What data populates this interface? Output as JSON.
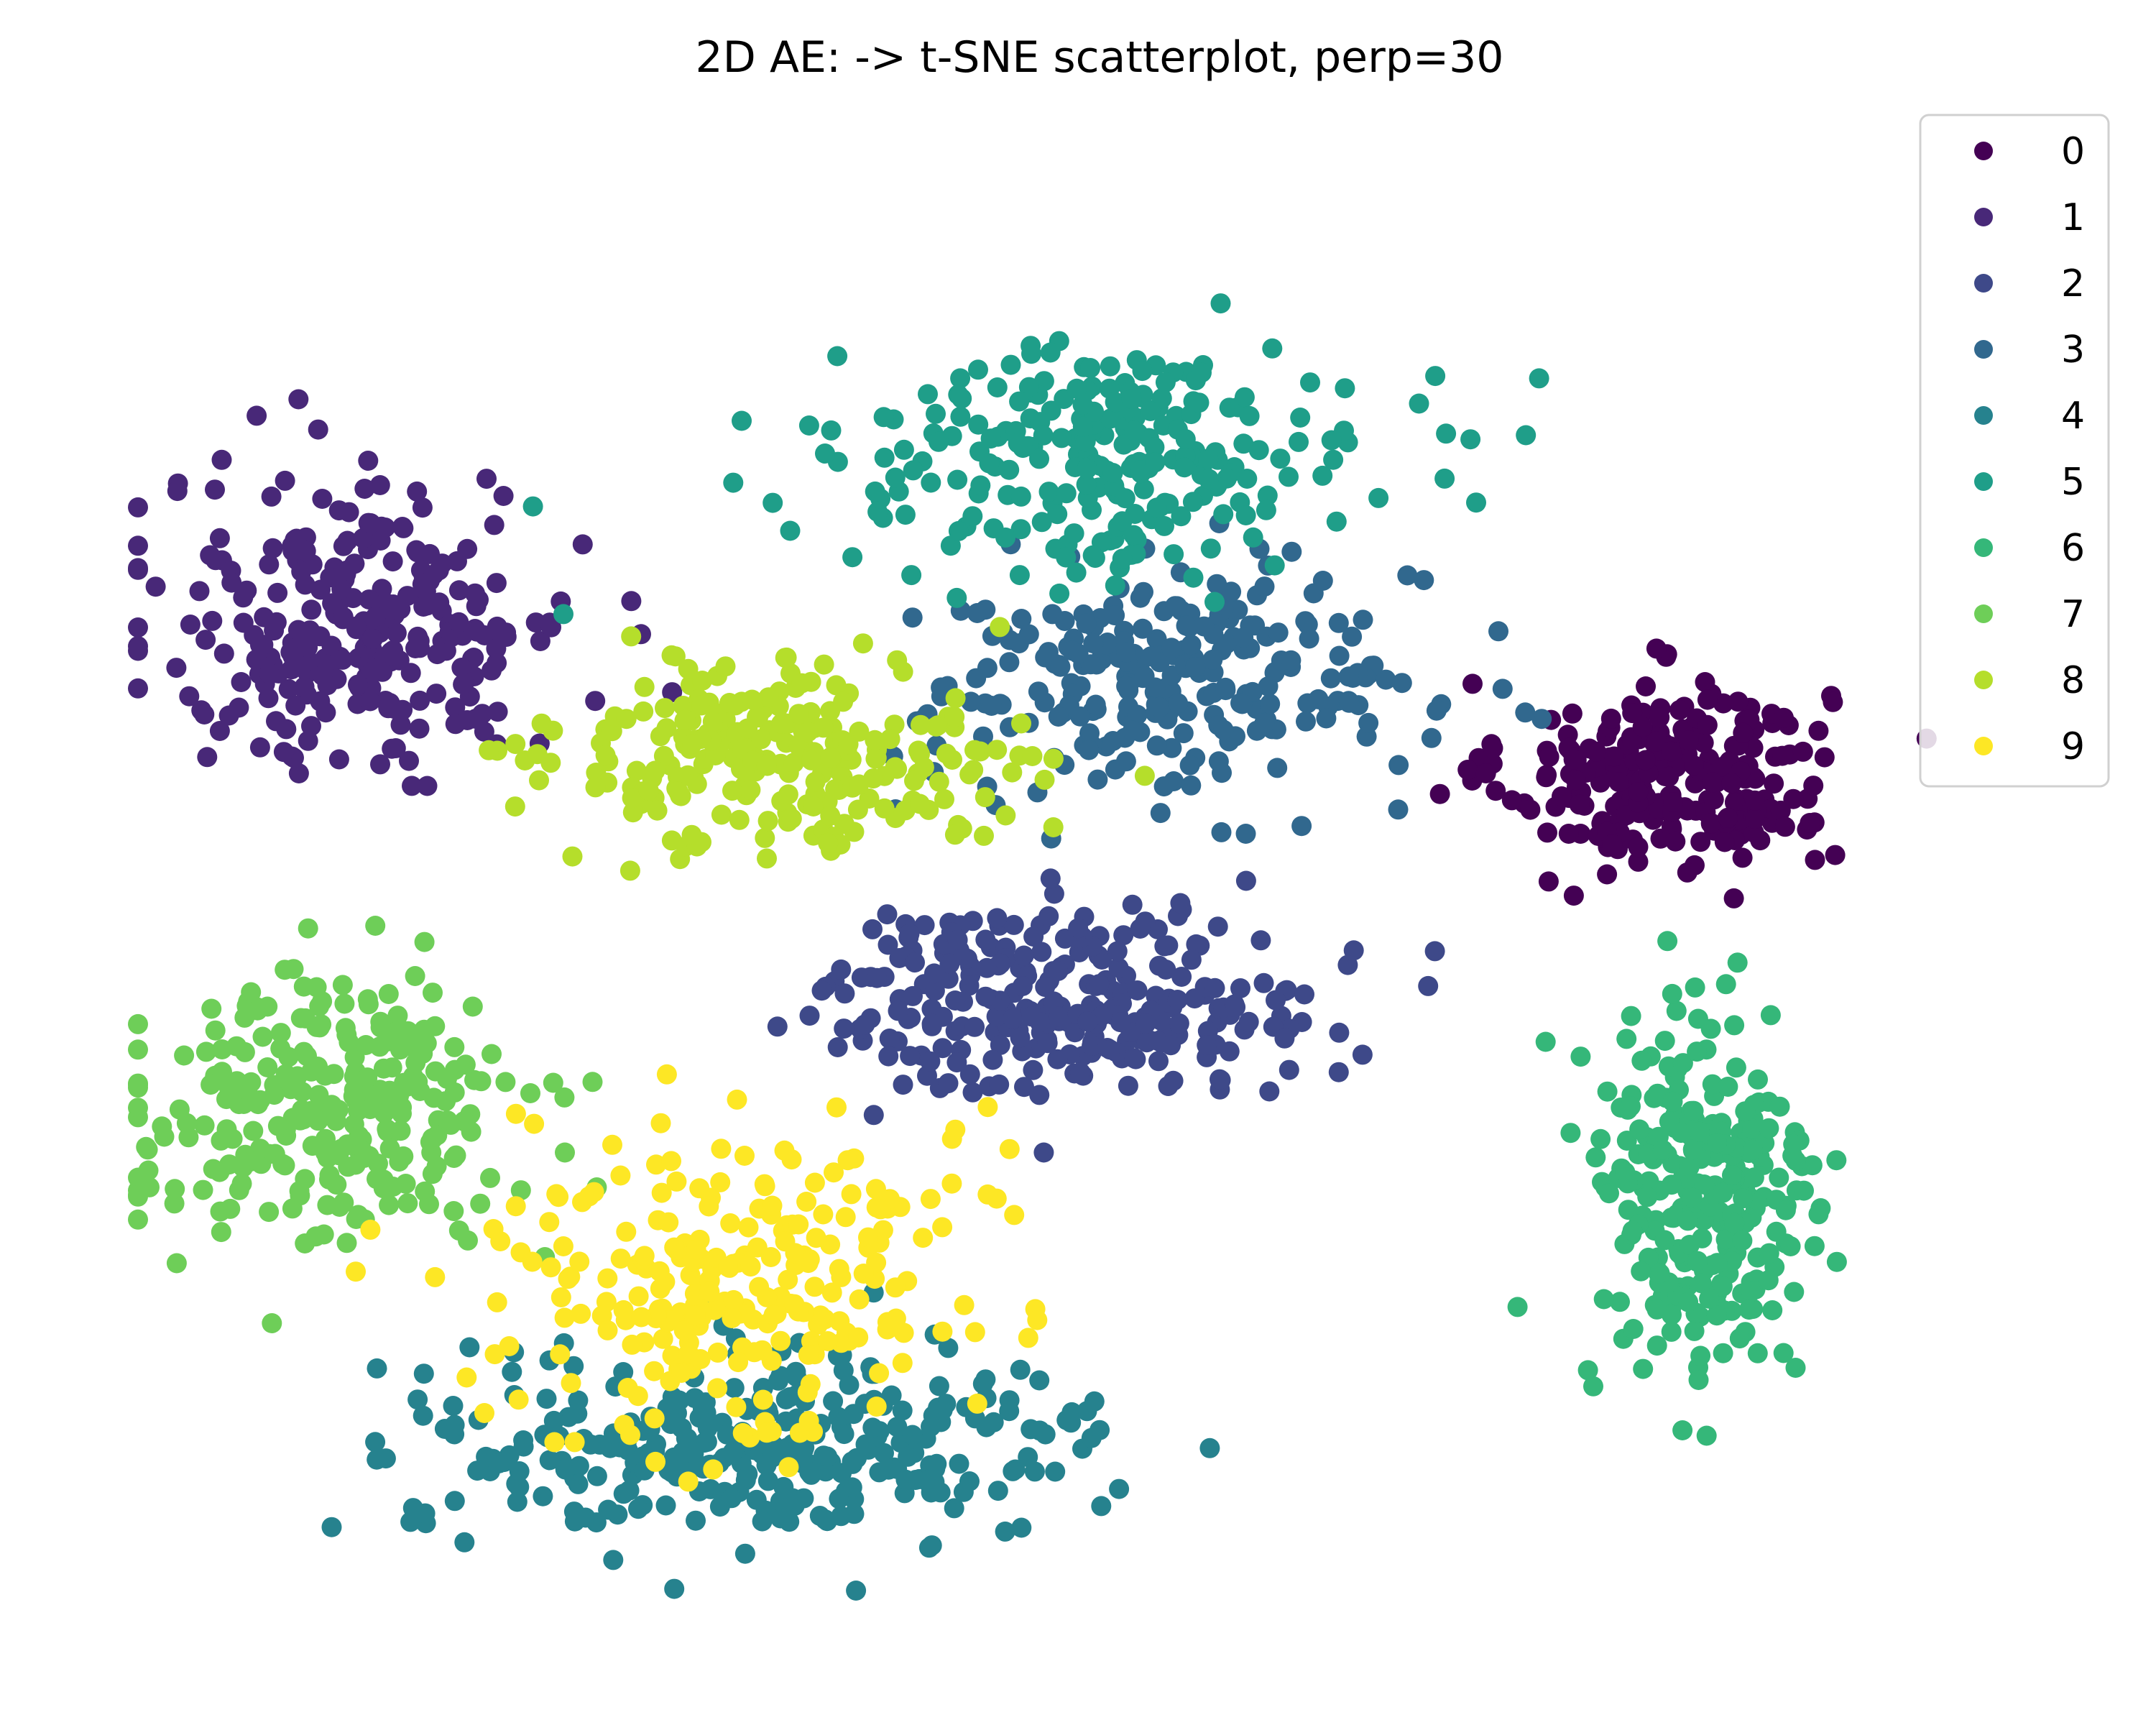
{
  "chart_data": {
    "type": "scatter",
    "title": "2D AE: -> t-SNE scatterplot, perp=30",
    "xlabel": "",
    "ylabel": "",
    "axes_visible": false,
    "grid": false,
    "legend_position": "top-right",
    "xlim": [
      -80,
      80
    ],
    "ylim": [
      -80,
      80
    ],
    "series": [
      {
        "name": "0",
        "color": "#440154",
        "center": [
          55,
          14
        ],
        "spread": [
          7,
          5
        ],
        "count": 260
      },
      {
        "name": "1",
        "color": "#482878",
        "center": [
          -58,
          30
        ],
        "spread": [
          9,
          8
        ],
        "count": 280
      },
      {
        "name": "2",
        "color": "#3e4989",
        "center": [
          3,
          -10
        ],
        "spread": [
          11,
          5
        ],
        "count": 280
      },
      {
        "name": "3",
        "color": "#31688e",
        "center": [
          12,
          24
        ],
        "spread": [
          11,
          6
        ],
        "count": 260
      },
      {
        "name": "4",
        "color": "#26828e",
        "center": [
          -24,
          -58
        ],
        "spread": [
          15,
          5
        ],
        "count": 320
      },
      {
        "name": "5",
        "color": "#1f9e89",
        "center": [
          6,
          48
        ],
        "spread": [
          12,
          6
        ],
        "count": 260
      },
      {
        "name": "6",
        "color": "#35b779",
        "center": [
          58,
          -32
        ],
        "spread": [
          5,
          11
        ],
        "count": 280
      },
      {
        "name": "7",
        "color": "#6ece58",
        "center": [
          -62,
          -22
        ],
        "spread": [
          9,
          7
        ],
        "count": 280
      },
      {
        "name": "8",
        "color": "#b5de2b",
        "center": [
          -22,
          16
        ],
        "spread": [
          10,
          5
        ],
        "count": 260
      },
      {
        "name": "9",
        "color": "#fde725",
        "center": [
          -26,
          -40
        ],
        "spread": [
          10,
          9
        ],
        "count": 260
      }
    ]
  }
}
